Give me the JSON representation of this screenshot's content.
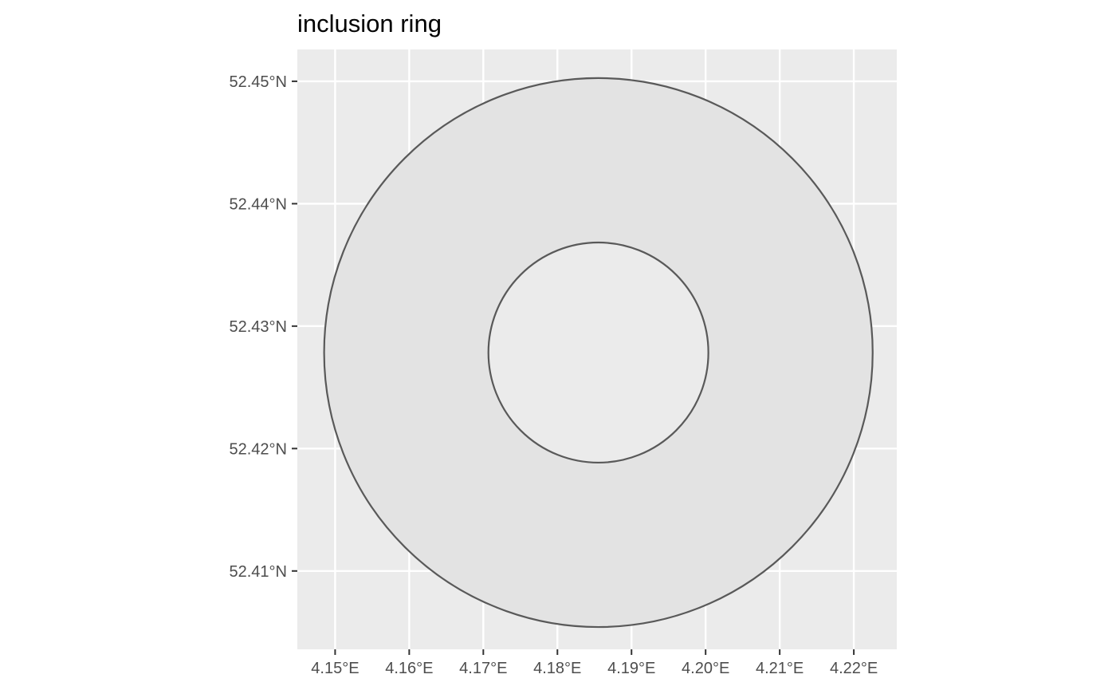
{
  "chart_data": {
    "type": "map",
    "title": "inclusion ring",
    "xlabel": "",
    "ylabel": "",
    "x_range": [
      4.1449,
      4.2258
    ],
    "y_range": [
      52.4036,
      52.4526
    ],
    "x_ticks": [
      4.15,
      4.16,
      4.17,
      4.18,
      4.19,
      4.2,
      4.21,
      4.22
    ],
    "x_tick_labels": [
      "4.15°E",
      "4.16°E",
      "4.17°E",
      "4.18°E",
      "4.19°E",
      "4.20°E",
      "4.21°E",
      "4.22°E"
    ],
    "y_ticks": [
      52.41,
      52.42,
      52.43,
      52.44,
      52.45
    ],
    "y_tick_labels": [
      "52.41°N",
      "52.42°N",
      "52.43°N",
      "52.44°N",
      "52.45°N"
    ],
    "grid": true,
    "ring": {
      "center_lon": 4.18553,
      "center_lat": 52.42784,
      "outer_radius_lat": 0.02242,
      "inner_radius_lat": 0.00899
    },
    "colors": {
      "panel_background": "#ebebeb",
      "grid_line": "#ffffff",
      "ring_fill": "#e3e3e3",
      "ring_outline": "#595959",
      "axis_text": "#4d4d4d",
      "tick_mark": "#333333"
    }
  }
}
